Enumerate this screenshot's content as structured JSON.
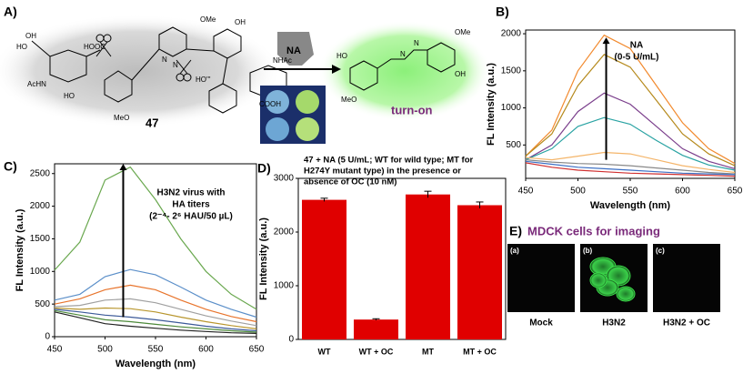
{
  "scheme": {
    "panel": "A)",
    "compound": "47",
    "enzyme": "NA",
    "result": "turn-on",
    "labels": [
      "OH",
      "HO",
      "HOOC",
      "AcHN",
      "HO",
      "MeO",
      "OMe",
      "OH",
      "HO'''",
      "NHAc",
      "COOH",
      "N",
      "N",
      "HO",
      "OH",
      "MeO",
      "OMe",
      "N",
      "N"
    ]
  },
  "chart_data": [
    {
      "type": "line",
      "panel": "B)",
      "xlabel": "Wavelength (nm)",
      "ylabel": "FL Intensity (a.u.)",
      "annotation": [
        "NA",
        "(0-5 U/mL)"
      ],
      "x": [
        450,
        475,
        500,
        525,
        550,
        575,
        600,
        625,
        650
      ],
      "xlim": [
        450,
        650
      ],
      "xticks": [
        450,
        500,
        550,
        600,
        650
      ],
      "ylim": [
        50,
        2050
      ],
      "yticks": [
        500,
        1000,
        1500,
        2000
      ],
      "series": [
        {
          "color": "#f28a2e",
          "values": [
            350,
            700,
            1500,
            1980,
            1800,
            1300,
            800,
            450,
            250
          ]
        },
        {
          "color": "#b5891b",
          "values": [
            350,
            650,
            1300,
            1720,
            1550,
            1100,
            650,
            380,
            220
          ]
        },
        {
          "color": "#7b3f8c",
          "values": [
            300,
            500,
            950,
            1200,
            1050,
            750,
            450,
            280,
            180
          ]
        },
        {
          "color": "#2aa3a3",
          "values": [
            300,
            450,
            750,
            870,
            780,
            560,
            360,
            230,
            160
          ]
        },
        {
          "color": "#f4b56a",
          "values": [
            330,
            300,
            350,
            400,
            380,
            300,
            220,
            170,
            130
          ]
        },
        {
          "color": "#888888",
          "values": [
            300,
            270,
            250,
            240,
            220,
            190,
            160,
            130,
            110
          ]
        },
        {
          "color": "#3b6fc4",
          "values": [
            280,
            240,
            200,
            180,
            160,
            140,
            120,
            110,
            100
          ]
        },
        {
          "color": "#d03030",
          "values": [
            260,
            200,
            160,
            140,
            120,
            110,
            100,
            90,
            80
          ]
        }
      ]
    },
    {
      "type": "line",
      "panel": "C)",
      "xlabel": "Wavelength (nm)",
      "ylabel": "FL Intensity (a.u.)",
      "annotation": [
        "H3N2 virus with",
        "HA titers",
        "(2⁻⁴- 2⁶ HAU/50 µL)"
      ],
      "x": [
        450,
        475,
        500,
        525,
        550,
        575,
        600,
        625,
        650
      ],
      "xlim": [
        450,
        650
      ],
      "xticks": [
        450,
        500,
        550,
        600,
        650
      ],
      "ylim": [
        0,
        2650
      ],
      "yticks": [
        0,
        500,
        1000,
        1500,
        2000,
        2500
      ],
      "series": [
        {
          "color": "#6aa84f",
          "values": [
            1020,
            1450,
            2400,
            2600,
            2100,
            1500,
            1000,
            650,
            420
          ]
        },
        {
          "color": "#5b8fc9",
          "values": [
            560,
            650,
            920,
            1030,
            950,
            760,
            560,
            420,
            300
          ]
        },
        {
          "color": "#e8742c",
          "values": [
            500,
            580,
            720,
            790,
            720,
            560,
            420,
            310,
            230
          ]
        },
        {
          "color": "#a0a0a0",
          "values": [
            460,
            480,
            560,
            580,
            520,
            420,
            320,
            240,
            170
          ]
        },
        {
          "color": "#b8962e",
          "values": [
            440,
            420,
            440,
            430,
            380,
            300,
            230,
            170,
            120
          ]
        },
        {
          "color": "#3c5a99",
          "values": [
            420,
            380,
            330,
            300,
            260,
            210,
            160,
            120,
            90
          ]
        },
        {
          "color": "#4d8a3a",
          "values": [
            400,
            330,
            260,
            230,
            190,
            150,
            120,
            90,
            70
          ]
        },
        {
          "color": "#222222",
          "values": [
            380,
            290,
            200,
            160,
            130,
            100,
            80,
            60,
            50
          ]
        }
      ]
    },
    {
      "type": "bar",
      "panel": "D)",
      "ylabel": "FL Intensity (a.u.)",
      "title": [
        "47 + NA (5 U/mL; WT for wild type; MT for",
        "H274Y mutant type) in the presence or",
        "absence of OC (10 nM)"
      ],
      "categories": [
        "WT",
        "WT + OC",
        "MT",
        "MT + OC"
      ],
      "values": [
        2600,
        370,
        2700,
        2500
      ],
      "errors": [
        30,
        15,
        60,
        60
      ],
      "color": "#e00000",
      "ylim": [
        0,
        3000
      ],
      "yticks": [
        0,
        1000,
        2000,
        3000
      ]
    }
  ],
  "imaging": {
    "panel": "E)",
    "title": "MDCK cells for imaging",
    "images": [
      {
        "tag": "(a)",
        "caption": "Mock"
      },
      {
        "tag": "(b)",
        "caption": "H3N2"
      },
      {
        "tag": "(c)",
        "caption": "H3N2 + OC"
      }
    ]
  }
}
